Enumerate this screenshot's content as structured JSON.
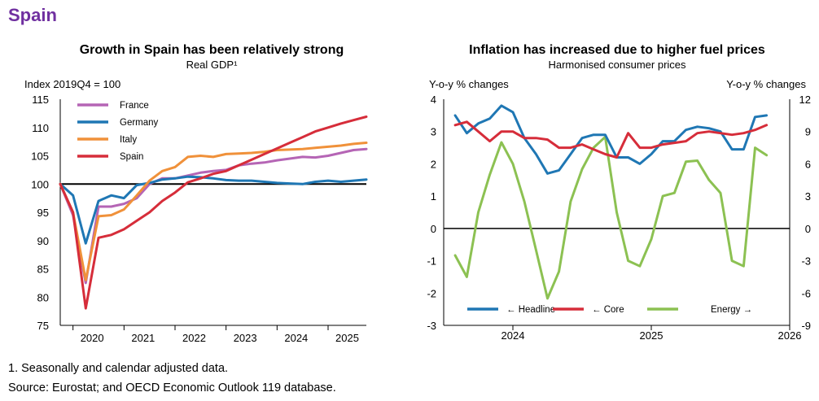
{
  "page": {
    "country_title": "Spain"
  },
  "footnotes": {
    "note": "1. Seasonally and calendar adjusted data.",
    "source": "Source: Eurostat; and OECD Economic Outlook 119 database."
  },
  "chart_data": [
    {
      "type": "line",
      "title": "Growth in Spain has been relatively strong",
      "subtitle": "Real GDP¹",
      "ylabel": "Index 2019Q4 = 100",
      "ylim": [
        75,
        115
      ],
      "yticks": [
        75,
        80,
        85,
        90,
        95,
        100,
        105,
        110,
        115
      ],
      "xlim": [
        2019.75,
        2025.75
      ],
      "xticks": [
        {
          "label": "2020",
          "x": 2020.375
        },
        {
          "label": "2021",
          "x": 2021.375
        },
        {
          "label": "2022",
          "x": 2022.375
        },
        {
          "label": "2023",
          "x": 2023.375
        },
        {
          "label": "2024",
          "x": 2024.375
        },
        {
          "label": "2025",
          "x": 2025.375
        }
      ],
      "reference_line": 100,
      "legend_position": "top-left",
      "x": [
        2019.75,
        2020.0,
        2020.25,
        2020.5,
        2020.75,
        2021.0,
        2021.25,
        2021.5,
        2021.75,
        2022.0,
        2022.25,
        2022.5,
        2022.75,
        2023.0,
        2023.25,
        2023.5,
        2023.75,
        2024.0,
        2024.25,
        2024.5,
        2024.75,
        2025.0,
        2025.25,
        2025.5,
        2025.75
      ],
      "series": [
        {
          "name": "France",
          "color": "#b565b5",
          "values": [
            100,
            94.5,
            82.5,
            96.0,
            96.0,
            96.5,
            97.5,
            100.0,
            101.0,
            101.0,
            101.5,
            102.0,
            102.3,
            102.5,
            103.3,
            103.6,
            103.8,
            104.2,
            104.5,
            104.8,
            104.7,
            105.0,
            105.5,
            106.0,
            106.2
          ]
        },
        {
          "name": "Germany",
          "color": "#1f77b4",
          "values": [
            100,
            98.0,
            89.5,
            97.0,
            98.0,
            97.5,
            99.8,
            100.2,
            100.8,
            101.0,
            101.3,
            101.2,
            101.0,
            100.7,
            100.6,
            100.6,
            100.4,
            100.2,
            100.1,
            100.0,
            100.4,
            100.6,
            100.4,
            100.6,
            100.8
          ]
        },
        {
          "name": "Italy",
          "color": "#f0913a",
          "values": [
            100,
            95.0,
            83.0,
            94.3,
            94.5,
            95.5,
            98.0,
            100.6,
            102.3,
            103.0,
            104.8,
            105.0,
            104.8,
            105.3,
            105.4,
            105.5,
            105.7,
            106.0,
            106.1,
            106.2,
            106.4,
            106.6,
            106.8,
            107.1,
            107.3
          ]
        },
        {
          "name": "Spain",
          "color": "#d62d3a",
          "values": [
            100,
            95.0,
            78.0,
            90.5,
            91.0,
            92.0,
            93.5,
            95.0,
            97.0,
            98.5,
            100.3,
            101.0,
            101.8,
            102.3,
            103.3,
            104.3,
            105.3,
            106.3,
            107.3,
            108.3,
            109.3,
            110.0,
            110.7,
            111.3,
            111.9
          ]
        }
      ]
    },
    {
      "type": "line",
      "title": "Inflation has increased due to higher fuel prices",
      "subtitle": "Harmonised consumer prices",
      "ylabel_left": "Y-o-y % changes",
      "ylabel_right": "Y-o-y % changes",
      "ylim_left": [
        -3,
        4
      ],
      "ylim_right": [
        -9,
        12
      ],
      "yticks_left": [
        -3,
        -2,
        -1,
        0,
        1,
        2,
        3,
        4
      ],
      "yticks_right": [
        -9,
        -6,
        -3,
        0,
        3,
        6,
        9,
        12
      ],
      "xlim": [
        2023.5,
        2026.0
      ],
      "xticks": [
        {
          "label": "2024",
          "x": 2024.0
        },
        {
          "label": "2025",
          "x": 2025.0
        },
        {
          "label": "2026",
          "x": 2026.0
        }
      ],
      "legend_position": "bottom",
      "x": [
        2023.583,
        2023.667,
        2023.75,
        2023.833,
        2023.917,
        2024.0,
        2024.083,
        2024.167,
        2024.25,
        2024.333,
        2024.417,
        2024.5,
        2024.583,
        2024.667,
        2024.75,
        2024.833,
        2024.917,
        2025.0,
        2025.083,
        2025.167,
        2025.25,
        2025.333,
        2025.417,
        2025.5,
        2025.583,
        2025.667,
        2025.75,
        2025.833
      ],
      "series": [
        {
          "name": "← Headline",
          "color": "#1f77b4",
          "axis": "left",
          "values": [
            3.5,
            2.95,
            3.25,
            3.4,
            3.8,
            3.6,
            2.8,
            2.3,
            1.7,
            1.8,
            2.3,
            2.8,
            2.9,
            2.9,
            2.2,
            2.2,
            2.0,
            2.3,
            2.7,
            2.7,
            3.05,
            3.15,
            3.1,
            3.0,
            2.45,
            2.45,
            3.45,
            3.5
          ]
        },
        {
          "name": "← Core",
          "color": "#d62d3a",
          "axis": "left",
          "values": [
            3.2,
            3.3,
            3.0,
            2.7,
            3.0,
            3.0,
            2.8,
            2.8,
            2.75,
            2.5,
            2.5,
            2.6,
            2.45,
            2.3,
            2.2,
            2.95,
            2.5,
            2.5,
            2.6,
            2.65,
            2.7,
            2.95,
            3.0,
            2.95,
            2.9,
            2.95,
            3.05,
            3.2
          ]
        },
        {
          "name": "Energy →",
          "color": "#8cc152",
          "axis": "right",
          "values": [
            -2.5,
            -4.5,
            1.5,
            5.0,
            8.0,
            6.0,
            2.5,
            -2.0,
            -6.5,
            -4.0,
            2.5,
            5.5,
            7.5,
            8.5,
            1.5,
            -3.0,
            -3.5,
            -1.0,
            3.0,
            3.3,
            6.2,
            6.3,
            4.5,
            3.3,
            -3.0,
            -3.5,
            7.5,
            6.8
          ]
        }
      ]
    }
  ]
}
